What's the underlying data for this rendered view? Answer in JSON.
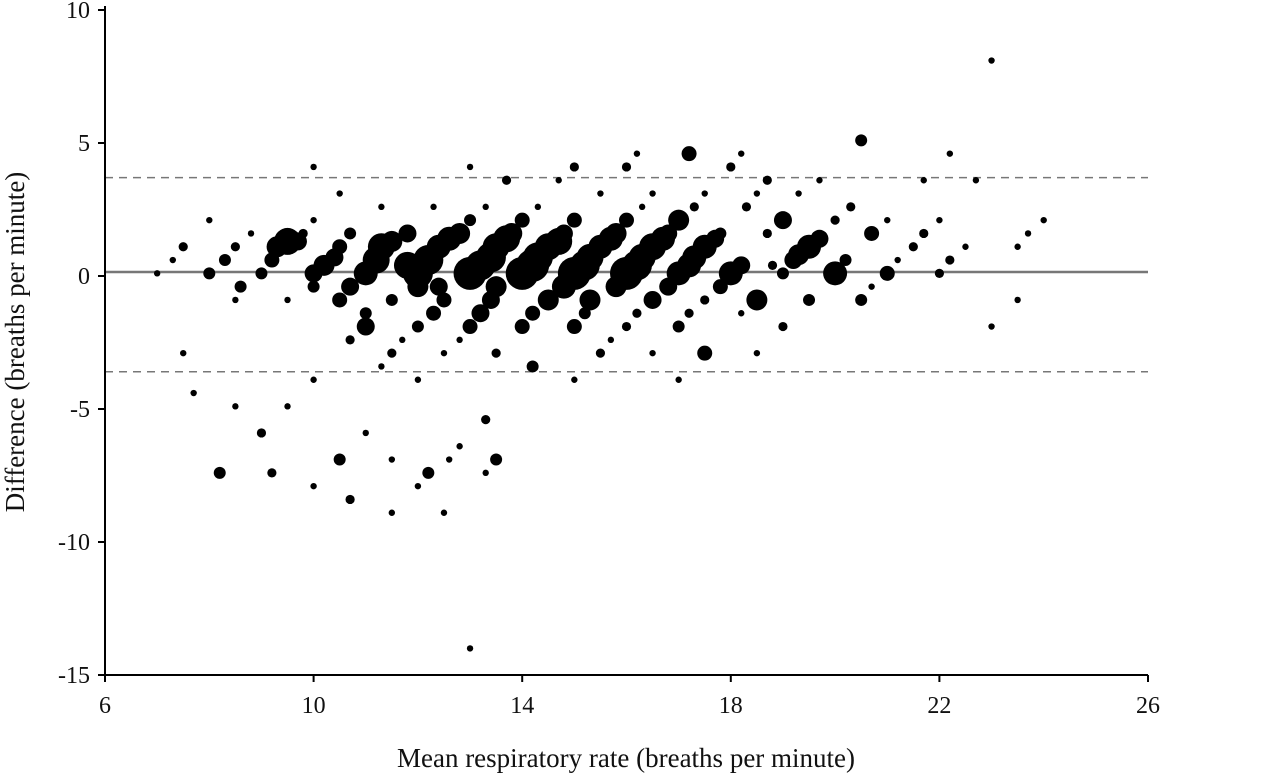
{
  "chart_data": {
    "type": "scatter",
    "title": "",
    "xlabel": "Mean respiratory rate (breaths per minute)",
    "ylabel": "Difference (breaths per minute)",
    "xlim": [
      6,
      26
    ],
    "ylim": [
      -15,
      10
    ],
    "xticks": [
      6,
      10,
      14,
      18,
      22,
      26
    ],
    "yticks": [
      10,
      5,
      0,
      -5,
      -10,
      -15
    ],
    "xtick_labels": [
      "6",
      "10",
      "14",
      "18",
      "22",
      "26"
    ],
    "ytick_labels": [
      "10",
      "5",
      "0",
      "-5",
      "-10",
      "-15"
    ],
    "grid": false,
    "legend": "none",
    "marker_color": "#000000",
    "reference_lines": [
      {
        "y": 0.15,
        "style": "solid",
        "color": "#777777"
      },
      {
        "y": 3.7,
        "style": "dashed",
        "color": "#777777"
      },
      {
        "y": -3.6,
        "style": "dashed",
        "color": "#777777"
      }
    ],
    "point_size_encoding": "relative frequency (size 1 = smallest dot)",
    "points": [
      {
        "x": 7.0,
        "y": 0.1,
        "s": 1
      },
      {
        "x": 7.3,
        "y": 0.6,
        "s": 1
      },
      {
        "x": 7.5,
        "y": 1.1,
        "s": 2
      },
      {
        "x": 7.5,
        "y": -2.9,
        "s": 1
      },
      {
        "x": 7.7,
        "y": -4.4,
        "s": 1
      },
      {
        "x": 8.0,
        "y": 2.1,
        "s": 1
      },
      {
        "x": 8.0,
        "y": 0.1,
        "s": 3
      },
      {
        "x": 8.3,
        "y": 0.6,
        "s": 3
      },
      {
        "x": 8.5,
        "y": 1.1,
        "s": 2
      },
      {
        "x": 8.5,
        "y": -0.9,
        "s": 1
      },
      {
        "x": 8.8,
        "y": 1.6,
        "s": 1
      },
      {
        "x": 8.6,
        "y": -0.4,
        "s": 3
      },
      {
        "x": 8.5,
        "y": -4.9,
        "s": 1
      },
      {
        "x": 8.2,
        "y": -7.4,
        "s": 3
      },
      {
        "x": 9.0,
        "y": -5.9,
        "s": 2
      },
      {
        "x": 9.2,
        "y": -7.4,
        "s": 2
      },
      {
        "x": 9.5,
        "y": -4.9,
        "s": 1
      },
      {
        "x": 9.5,
        "y": -0.9,
        "s": 1
      },
      {
        "x": 9.0,
        "y": 0.1,
        "s": 3
      },
      {
        "x": 9.2,
        "y": 0.6,
        "s": 4
      },
      {
        "x": 9.3,
        "y": 1.1,
        "s": 6
      },
      {
        "x": 9.5,
        "y": 1.3,
        "s": 8
      },
      {
        "x": 9.7,
        "y": 1.3,
        "s": 5
      },
      {
        "x": 9.8,
        "y": 1.6,
        "s": 2
      },
      {
        "x": 10.0,
        "y": 2.1,
        "s": 1
      },
      {
        "x": 10.0,
        "y": 4.1,
        "s": 1
      },
      {
        "x": 10.0,
        "y": -0.4,
        "s": 3
      },
      {
        "x": 10.0,
        "y": 0.1,
        "s": 5
      },
      {
        "x": 10.2,
        "y": 0.4,
        "s": 6
      },
      {
        "x": 10.4,
        "y": 0.7,
        "s": 5
      },
      {
        "x": 10.5,
        "y": 1.1,
        "s": 4
      },
      {
        "x": 10.5,
        "y": 3.1,
        "s": 1
      },
      {
        "x": 10.0,
        "y": -3.9,
        "s": 1
      },
      {
        "x": 10.0,
        "y": -7.9,
        "s": 1
      },
      {
        "x": 10.5,
        "y": -6.9,
        "s": 3
      },
      {
        "x": 10.5,
        "y": -0.9,
        "s": 4
      },
      {
        "x": 10.7,
        "y": -0.4,
        "s": 5
      },
      {
        "x": 10.7,
        "y": 1.6,
        "s": 3
      },
      {
        "x": 10.7,
        "y": -2.4,
        "s": 2
      },
      {
        "x": 10.7,
        "y": -8.4,
        "s": 2
      },
      {
        "x": 11.0,
        "y": -1.4,
        "s": 3
      },
      {
        "x": 11.0,
        "y": 0.1,
        "s": 7
      },
      {
        "x": 11.2,
        "y": 0.6,
        "s": 8
      },
      {
        "x": 11.3,
        "y": 1.1,
        "s": 8
      },
      {
        "x": 11.3,
        "y": 2.6,
        "s": 1
      },
      {
        "x": 11.0,
        "y": -5.9,
        "s": 1
      },
      {
        "x": 11.0,
        "y": -1.9,
        "s": 5
      },
      {
        "x": 11.3,
        "y": -3.4,
        "s": 1
      },
      {
        "x": 11.5,
        "y": 1.3,
        "s": 6
      },
      {
        "x": 11.5,
        "y": -0.9,
        "s": 3
      },
      {
        "x": 11.5,
        "y": -2.9,
        "s": 2
      },
      {
        "x": 11.5,
        "y": -6.9,
        "s": 1
      },
      {
        "x": 11.5,
        "y": -8.9,
        "s": 1
      },
      {
        "x": 11.7,
        "y": -2.4,
        "s": 1
      },
      {
        "x": 11.8,
        "y": 1.6,
        "s": 5
      },
      {
        "x": 12.0,
        "y": 0.1,
        "s": 9
      },
      {
        "x": 11.8,
        "y": 0.4,
        "s": 8
      },
      {
        "x": 12.0,
        "y": -0.4,
        "s": 6
      },
      {
        "x": 12.0,
        "y": -1.9,
        "s": 3
      },
      {
        "x": 12.0,
        "y": -3.9,
        "s": 1
      },
      {
        "x": 12.0,
        "y": -7.9,
        "s": 1
      },
      {
        "x": 12.2,
        "y": 0.6,
        "s": 9
      },
      {
        "x": 12.2,
        "y": -7.4,
        "s": 3
      },
      {
        "x": 12.3,
        "y": -1.4,
        "s": 4
      },
      {
        "x": 12.3,
        "y": 2.6,
        "s": 1
      },
      {
        "x": 12.4,
        "y": 1.1,
        "s": 7
      },
      {
        "x": 12.4,
        "y": -0.4,
        "s": 5
      },
      {
        "x": 12.5,
        "y": -0.9,
        "s": 4
      },
      {
        "x": 12.5,
        "y": -2.9,
        "s": 1
      },
      {
        "x": 12.5,
        "y": -8.9,
        "s": 1
      },
      {
        "x": 12.6,
        "y": 1.4,
        "s": 7
      },
      {
        "x": 12.6,
        "y": -6.9,
        "s": 1
      },
      {
        "x": 12.8,
        "y": 1.6,
        "s": 6
      },
      {
        "x": 12.8,
        "y": -6.4,
        "s": 1
      },
      {
        "x": 12.8,
        "y": -2.4,
        "s": 1
      },
      {
        "x": 13.0,
        "y": 0.1,
        "s": 10
      },
      {
        "x": 13.0,
        "y": 2.1,
        "s": 3
      },
      {
        "x": 13.0,
        "y": 4.1,
        "s": 1
      },
      {
        "x": 13.0,
        "y": -1.9,
        "s": 4
      },
      {
        "x": 13.0,
        "y": -14.0,
        "s": 1
      },
      {
        "x": 13.2,
        "y": 0.4,
        "s": 9
      },
      {
        "x": 13.2,
        "y": -1.4,
        "s": 5
      },
      {
        "x": 13.3,
        "y": -5.4,
        "s": 2
      },
      {
        "x": 13.3,
        "y": -7.4,
        "s": 1
      },
      {
        "x": 13.3,
        "y": 2.6,
        "s": 1
      },
      {
        "x": 13.4,
        "y": 0.7,
        "s": 9
      },
      {
        "x": 13.4,
        "y": -0.9,
        "s": 5
      },
      {
        "x": 13.5,
        "y": 1.1,
        "s": 8
      },
      {
        "x": 13.5,
        "y": -0.4,
        "s": 6
      },
      {
        "x": 13.5,
        "y": -2.9,
        "s": 2
      },
      {
        "x": 13.5,
        "y": -6.9,
        "s": 3
      },
      {
        "x": 13.7,
        "y": 1.4,
        "s": 8
      },
      {
        "x": 13.7,
        "y": 3.6,
        "s": 2
      },
      {
        "x": 13.8,
        "y": 1.6,
        "s": 6
      },
      {
        "x": 14.0,
        "y": 0.1,
        "s": 10
      },
      {
        "x": 14.0,
        "y": -1.9,
        "s": 4
      },
      {
        "x": 14.0,
        "y": 2.1,
        "s": 4
      },
      {
        "x": 14.2,
        "y": 0.4,
        "s": 10
      },
      {
        "x": 14.2,
        "y": -1.4,
        "s": 4
      },
      {
        "x": 14.2,
        "y": -3.4,
        "s": 3
      },
      {
        "x": 14.3,
        "y": 0.7,
        "s": 9
      },
      {
        "x": 14.3,
        "y": 2.6,
        "s": 1
      },
      {
        "x": 14.5,
        "y": 1.1,
        "s": 8
      },
      {
        "x": 14.5,
        "y": -0.9,
        "s": 6
      },
      {
        "x": 14.7,
        "y": 1.3,
        "s": 8
      },
      {
        "x": 14.7,
        "y": 3.6,
        "s": 1
      },
      {
        "x": 14.8,
        "y": -0.4,
        "s": 7
      },
      {
        "x": 14.8,
        "y": 1.6,
        "s": 5
      },
      {
        "x": 15.0,
        "y": 0.1,
        "s": 10
      },
      {
        "x": 15.0,
        "y": -1.9,
        "s": 4
      },
      {
        "x": 15.0,
        "y": 2.1,
        "s": 4
      },
      {
        "x": 15.0,
        "y": 4.1,
        "s": 2
      },
      {
        "x": 15.0,
        "y": -3.9,
        "s": 1
      },
      {
        "x": 15.2,
        "y": 0.4,
        "s": 9
      },
      {
        "x": 15.2,
        "y": -1.4,
        "s": 3
      },
      {
        "x": 15.3,
        "y": 0.7,
        "s": 8
      },
      {
        "x": 15.3,
        "y": -0.9,
        "s": 6
      },
      {
        "x": 15.5,
        "y": 1.1,
        "s": 7
      },
      {
        "x": 15.5,
        "y": -2.9,
        "s": 2
      },
      {
        "x": 15.5,
        "y": 3.1,
        "s": 1
      },
      {
        "x": 15.7,
        "y": 1.4,
        "s": 7
      },
      {
        "x": 15.7,
        "y": -2.4,
        "s": 1
      },
      {
        "x": 15.8,
        "y": 1.6,
        "s": 6
      },
      {
        "x": 15.8,
        "y": -0.4,
        "s": 6
      },
      {
        "x": 16.0,
        "y": 0.1,
        "s": 10
      },
      {
        "x": 16.0,
        "y": -1.9,
        "s": 2
      },
      {
        "x": 16.0,
        "y": 2.1,
        "s": 4
      },
      {
        "x": 16.0,
        "y": 4.1,
        "s": 2
      },
      {
        "x": 16.2,
        "y": 0.4,
        "s": 9
      },
      {
        "x": 16.2,
        "y": -1.4,
        "s": 2
      },
      {
        "x": 16.2,
        "y": 4.6,
        "s": 1
      },
      {
        "x": 16.3,
        "y": 0.7,
        "s": 8
      },
      {
        "x": 16.3,
        "y": 2.6,
        "s": 1
      },
      {
        "x": 16.5,
        "y": 1.1,
        "s": 8
      },
      {
        "x": 16.5,
        "y": -0.9,
        "s": 5
      },
      {
        "x": 16.5,
        "y": -2.9,
        "s": 1
      },
      {
        "x": 16.5,
        "y": 3.1,
        "s": 1
      },
      {
        "x": 16.7,
        "y": 1.4,
        "s": 7
      },
      {
        "x": 16.8,
        "y": 1.6,
        "s": 5
      },
      {
        "x": 16.8,
        "y": -0.4,
        "s": 5
      },
      {
        "x": 17.0,
        "y": 0.1,
        "s": 7
      },
      {
        "x": 17.0,
        "y": -1.9,
        "s": 3
      },
      {
        "x": 17.0,
        "y": 2.1,
        "s": 6
      },
      {
        "x": 17.0,
        "y": -3.9,
        "s": 1
      },
      {
        "x": 17.2,
        "y": 0.4,
        "s": 7
      },
      {
        "x": 17.2,
        "y": -1.4,
        "s": 2
      },
      {
        "x": 17.2,
        "y": 4.6,
        "s": 4
      },
      {
        "x": 17.3,
        "y": 0.7,
        "s": 7
      },
      {
        "x": 17.3,
        "y": 2.6,
        "s": 2
      },
      {
        "x": 17.5,
        "y": 1.1,
        "s": 7
      },
      {
        "x": 17.5,
        "y": -0.9,
        "s": 2
      },
      {
        "x": 17.5,
        "y": -2.9,
        "s": 4
      },
      {
        "x": 17.5,
        "y": 3.1,
        "s": 1
      },
      {
        "x": 17.7,
        "y": 1.4,
        "s": 5
      },
      {
        "x": 17.8,
        "y": -0.4,
        "s": 4
      },
      {
        "x": 17.8,
        "y": 1.6,
        "s": 3
      },
      {
        "x": 18.0,
        "y": 0.1,
        "s": 7
      },
      {
        "x": 18.0,
        "y": 4.1,
        "s": 2
      },
      {
        "x": 18.2,
        "y": 0.4,
        "s": 5
      },
      {
        "x": 18.2,
        "y": -1.4,
        "s": 1
      },
      {
        "x": 18.2,
        "y": 4.6,
        "s": 1
      },
      {
        "x": 18.3,
        "y": 2.6,
        "s": 2
      },
      {
        "x": 18.5,
        "y": -0.9,
        "s": 6
      },
      {
        "x": 18.5,
        "y": -2.9,
        "s": 1
      },
      {
        "x": 18.5,
        "y": 3.1,
        "s": 1
      },
      {
        "x": 18.7,
        "y": 1.6,
        "s": 2
      },
      {
        "x": 18.7,
        "y": 3.6,
        "s": 2
      },
      {
        "x": 18.8,
        "y": 0.4,
        "s": 2
      },
      {
        "x": 19.0,
        "y": 2.1,
        "s": 5
      },
      {
        "x": 19.0,
        "y": 0.1,
        "s": 3
      },
      {
        "x": 19.0,
        "y": -1.9,
        "s": 2
      },
      {
        "x": 19.2,
        "y": 0.6,
        "s": 5
      },
      {
        "x": 19.3,
        "y": 3.1,
        "s": 1
      },
      {
        "x": 19.3,
        "y": 0.8,
        "s": 6
      },
      {
        "x": 19.5,
        "y": 1.1,
        "s": 7
      },
      {
        "x": 19.5,
        "y": -0.9,
        "s": 3
      },
      {
        "x": 19.7,
        "y": 1.4,
        "s": 5
      },
      {
        "x": 19.7,
        "y": 3.6,
        "s": 1
      },
      {
        "x": 20.0,
        "y": 0.1,
        "s": 7
      },
      {
        "x": 20.0,
        "y": 2.1,
        "s": 2
      },
      {
        "x": 20.2,
        "y": 0.6,
        "s": 3
      },
      {
        "x": 20.3,
        "y": 2.6,
        "s": 2
      },
      {
        "x": 20.5,
        "y": 5.1,
        "s": 3
      },
      {
        "x": 20.5,
        "y": -0.9,
        "s": 3
      },
      {
        "x": 20.7,
        "y": -0.4,
        "s": 1
      },
      {
        "x": 20.7,
        "y": 1.6,
        "s": 4
      },
      {
        "x": 21.0,
        "y": 0.1,
        "s": 4
      },
      {
        "x": 21.0,
        "y": 2.1,
        "s": 1
      },
      {
        "x": 21.2,
        "y": 0.6,
        "s": 1
      },
      {
        "x": 21.5,
        "y": 1.1,
        "s": 2
      },
      {
        "x": 21.7,
        "y": 1.6,
        "s": 2
      },
      {
        "x": 21.7,
        "y": 3.6,
        "s": 1
      },
      {
        "x": 22.0,
        "y": 0.1,
        "s": 2
      },
      {
        "x": 22.0,
        "y": 2.1,
        "s": 1
      },
      {
        "x": 22.2,
        "y": 0.6,
        "s": 2
      },
      {
        "x": 22.2,
        "y": 4.6,
        "s": 1
      },
      {
        "x": 22.5,
        "y": 1.1,
        "s": 1
      },
      {
        "x": 22.7,
        "y": 3.6,
        "s": 1
      },
      {
        "x": 23.0,
        "y": 8.1,
        "s": 1
      },
      {
        "x": 23.0,
        "y": -1.9,
        "s": 1
      },
      {
        "x": 23.5,
        "y": 1.1,
        "s": 1
      },
      {
        "x": 23.5,
        "y": -0.9,
        "s": 1
      },
      {
        "x": 23.7,
        "y": 1.6,
        "s": 1
      },
      {
        "x": 24.0,
        "y": 2.1,
        "s": 1
      }
    ]
  }
}
